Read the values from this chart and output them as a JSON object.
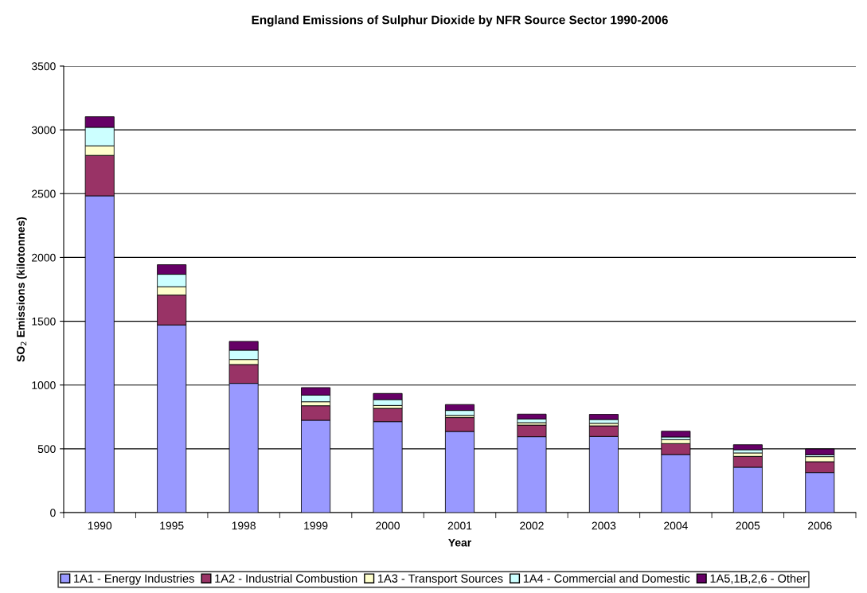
{
  "chart_data": {
    "type": "bar",
    "stacked": true,
    "title": "England Emissions of Sulphur Dioxide by NFR Source Sector 1990-2006",
    "xlabel": "Year",
    "ylabel": "SO$_{2}$ Emissions (kilotonnes)",
    "categories": [
      "1990",
      "1995",
      "1998",
      "1999",
      "2000",
      "2001",
      "2002",
      "2003",
      "2004",
      "2005",
      "2006"
    ],
    "series": [
      {
        "name": "1A1 - Energy Industries",
        "color": "#9999ff",
        "values": [
          2483,
          1471,
          1013,
          724,
          713,
          636,
          595,
          597,
          455,
          356,
          314
        ]
      },
      {
        "name": "1A2 - Industrial Combustion",
        "color": "#993366",
        "values": [
          317,
          234,
          148,
          114,
          104,
          109,
          91,
          83,
          86,
          85,
          85
        ]
      },
      {
        "name": "1A3 - Transport Sources",
        "color": "#ffffcc",
        "values": [
          75,
          65,
          39,
          31,
          23,
          16,
          19,
          20,
          31,
          27,
          40
        ]
      },
      {
        "name": "1A4 - Commercial and Domestic",
        "color": "#ccffff",
        "values": [
          145,
          98,
          73,
          52,
          46,
          40,
          29,
          30,
          21,
          25,
          15
        ]
      },
      {
        "name": "1A5,1B,2,6 - Other",
        "color": "#660066",
        "values": [
          83,
          75,
          69,
          59,
          48,
          46,
          38,
          40,
          45,
          39,
          45
        ]
      }
    ],
    "ylim": [
      0,
      3500
    ],
    "yticks": [
      0,
      500,
      1000,
      1500,
      2000,
      2500,
      3000,
      3500
    ],
    "grid": "y",
    "legend": "bottom"
  }
}
